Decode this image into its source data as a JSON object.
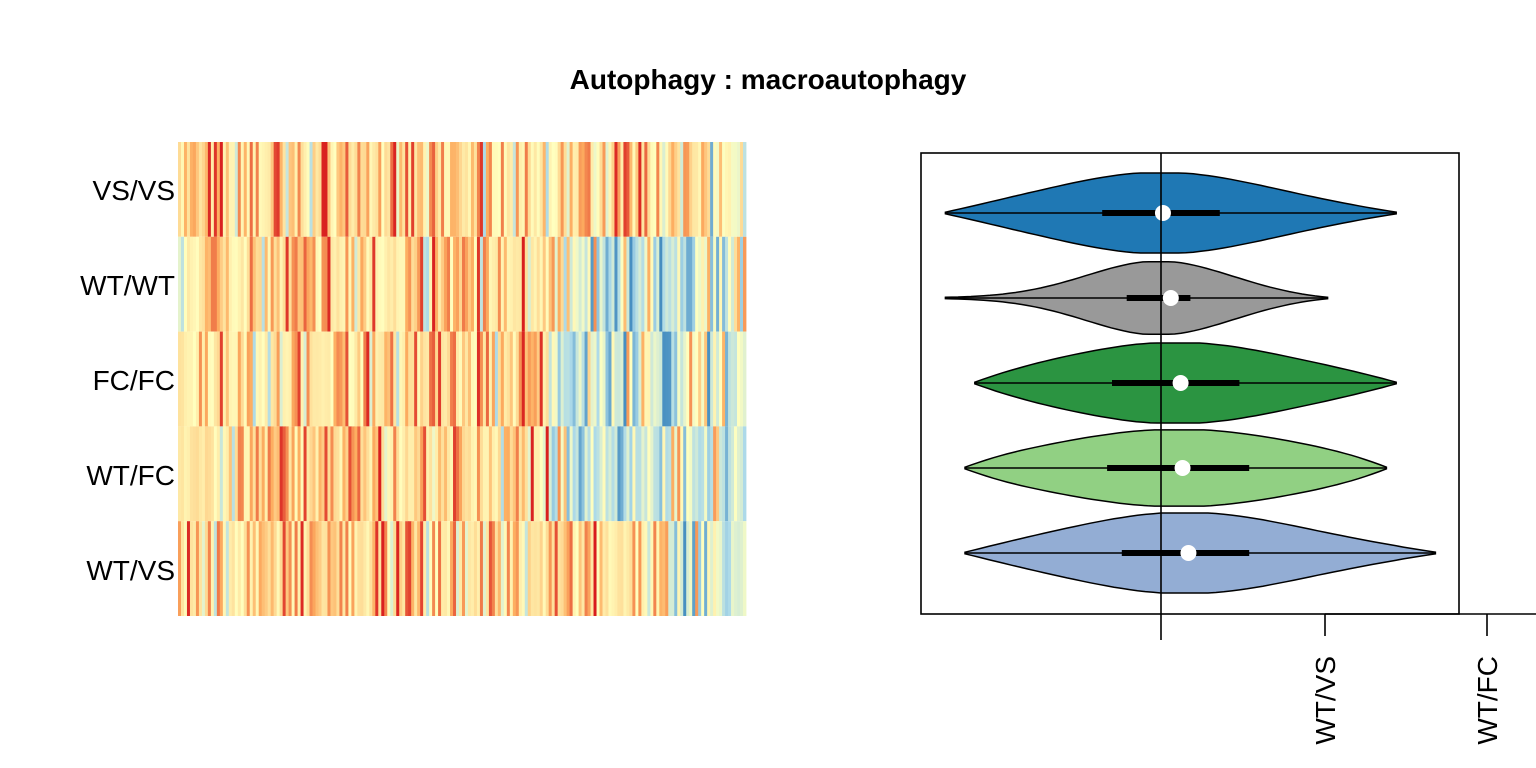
{
  "chart_data": [
    {
      "type": "heatmap",
      "title": "Autophagy : macroautophagy",
      "rows": [
        "VS/VS",
        "WT/WT",
        "FC/FC",
        "WT/FC",
        "WT/VS"
      ],
      "color_scale": [
        "#2c7bb6",
        "#abd9e9",
        "#ffffbf",
        "#fdae61",
        "#d7191c"
      ],
      "blue_section_start": [
        0.93,
        0.66,
        0.65,
        0.65,
        0.85
      ]
    },
    {
      "type": "violin",
      "categories": [
        "VS/VS",
        "WT/WT",
        "FC/FC",
        "WT/FC",
        "WT/VS"
      ],
      "colors": [
        "#1f78b4",
        "#999999",
        "#2b9441",
        "#91d083",
        "#93add4"
      ],
      "xlim": [
        -2.2,
        3.3
      ],
      "reference_line": 0,
      "series": [
        {
          "min": -2.2,
          "max": 2.4,
          "q1": -0.6,
          "q3": 0.6,
          "median": 0.02,
          "width": 0.42
        },
        {
          "min": -2.2,
          "max": 1.7,
          "q1": -0.35,
          "q3": 0.3,
          "median": 0.1,
          "width": 0.38
        },
        {
          "min": -1.9,
          "max": 2.4,
          "q1": -0.5,
          "q3": 0.8,
          "median": 0.2,
          "width": 0.42
        },
        {
          "min": -2.0,
          "max": 2.3,
          "q1": -0.55,
          "q3": 0.9,
          "median": 0.22,
          "width": 0.4
        },
        {
          "min": -2.0,
          "max": 2.8,
          "q1": -0.4,
          "q3": 0.9,
          "median": 0.28,
          "width": 0.42
        }
      ],
      "xtick_labels": [
        "WT/VS",
        "WT/FC"
      ]
    }
  ]
}
